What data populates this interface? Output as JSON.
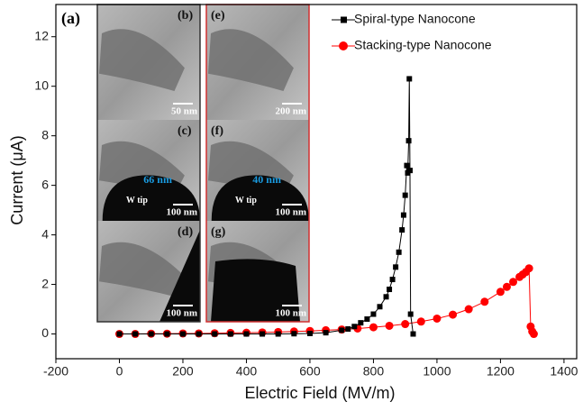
{
  "chart_data": {
    "type": "line",
    "panel_label": "(a)",
    "x_label": "Electric Field (MV/m)",
    "y_label": "Current (μA)",
    "xlim": [
      -200,
      1440
    ],
    "ylim": [
      -1,
      13.3
    ],
    "xticks": [
      -200,
      0,
      200,
      400,
      600,
      800,
      1000,
      1200,
      1400
    ],
    "yticks": [
      0,
      2,
      4,
      6,
      8,
      10,
      12
    ],
    "legend": "upper right",
    "series": [
      {
        "name": "Spiral-type Nanocone",
        "color": "#000000",
        "marker": "square",
        "x": [
          0,
          50,
          100,
          150,
          200,
          250,
          300,
          350,
          400,
          450,
          500,
          550,
          600,
          650,
          700,
          720,
          740,
          760,
          780,
          800,
          820,
          840,
          850,
          860,
          870,
          880,
          890,
          895,
          900,
          905,
          908,
          911,
          913,
          915,
          917,
          925
        ],
        "values": [
          0,
          0,
          0,
          0,
          0,
          0,
          0,
          0,
          0,
          0,
          0,
          0.01,
          0.02,
          0.05,
          0.15,
          0.2,
          0.3,
          0.45,
          0.6,
          0.8,
          1.1,
          1.5,
          1.8,
          2.2,
          2.7,
          3.3,
          4.2,
          4.8,
          5.6,
          6.8,
          6.5,
          7.8,
          10.3,
          6.6,
          0.8,
          0
        ]
      },
      {
        "name": "Stacking-type Nanocone",
        "color": "#ff0000",
        "marker": "circle",
        "x": [
          0,
          50,
          100,
          150,
          200,
          250,
          300,
          350,
          400,
          450,
          500,
          550,
          600,
          650,
          700,
          750,
          800,
          850,
          900,
          950,
          1000,
          1050,
          1100,
          1150,
          1200,
          1220,
          1240,
          1260,
          1270,
          1280,
          1290,
          1295,
          1300,
          1305
        ],
        "values": [
          0,
          0,
          0.01,
          0.01,
          0.02,
          0.02,
          0.03,
          0.04,
          0.05,
          0.06,
          0.08,
          0.1,
          0.12,
          0.15,
          0.18,
          0.22,
          0.27,
          0.33,
          0.4,
          0.5,
          0.62,
          0.78,
          1.0,
          1.3,
          1.7,
          1.9,
          2.1,
          2.3,
          2.4,
          2.5,
          2.65,
          0.3,
          0.1,
          0
        ]
      }
    ],
    "insets": [
      {
        "label": "(b)",
        "scale": "50 nm"
      },
      {
        "label": "(c)",
        "scale": "100 nm",
        "tip": "W tip",
        "width": "66 nm"
      },
      {
        "label": "(d)",
        "scale": "100 nm"
      },
      {
        "label": "(e)",
        "scale": "200 nm"
      },
      {
        "label": "(f)",
        "scale": "100 nm",
        "tip": "W tip",
        "width": "40 nm"
      },
      {
        "label": "(g)",
        "scale": "100 nm"
      }
    ]
  }
}
